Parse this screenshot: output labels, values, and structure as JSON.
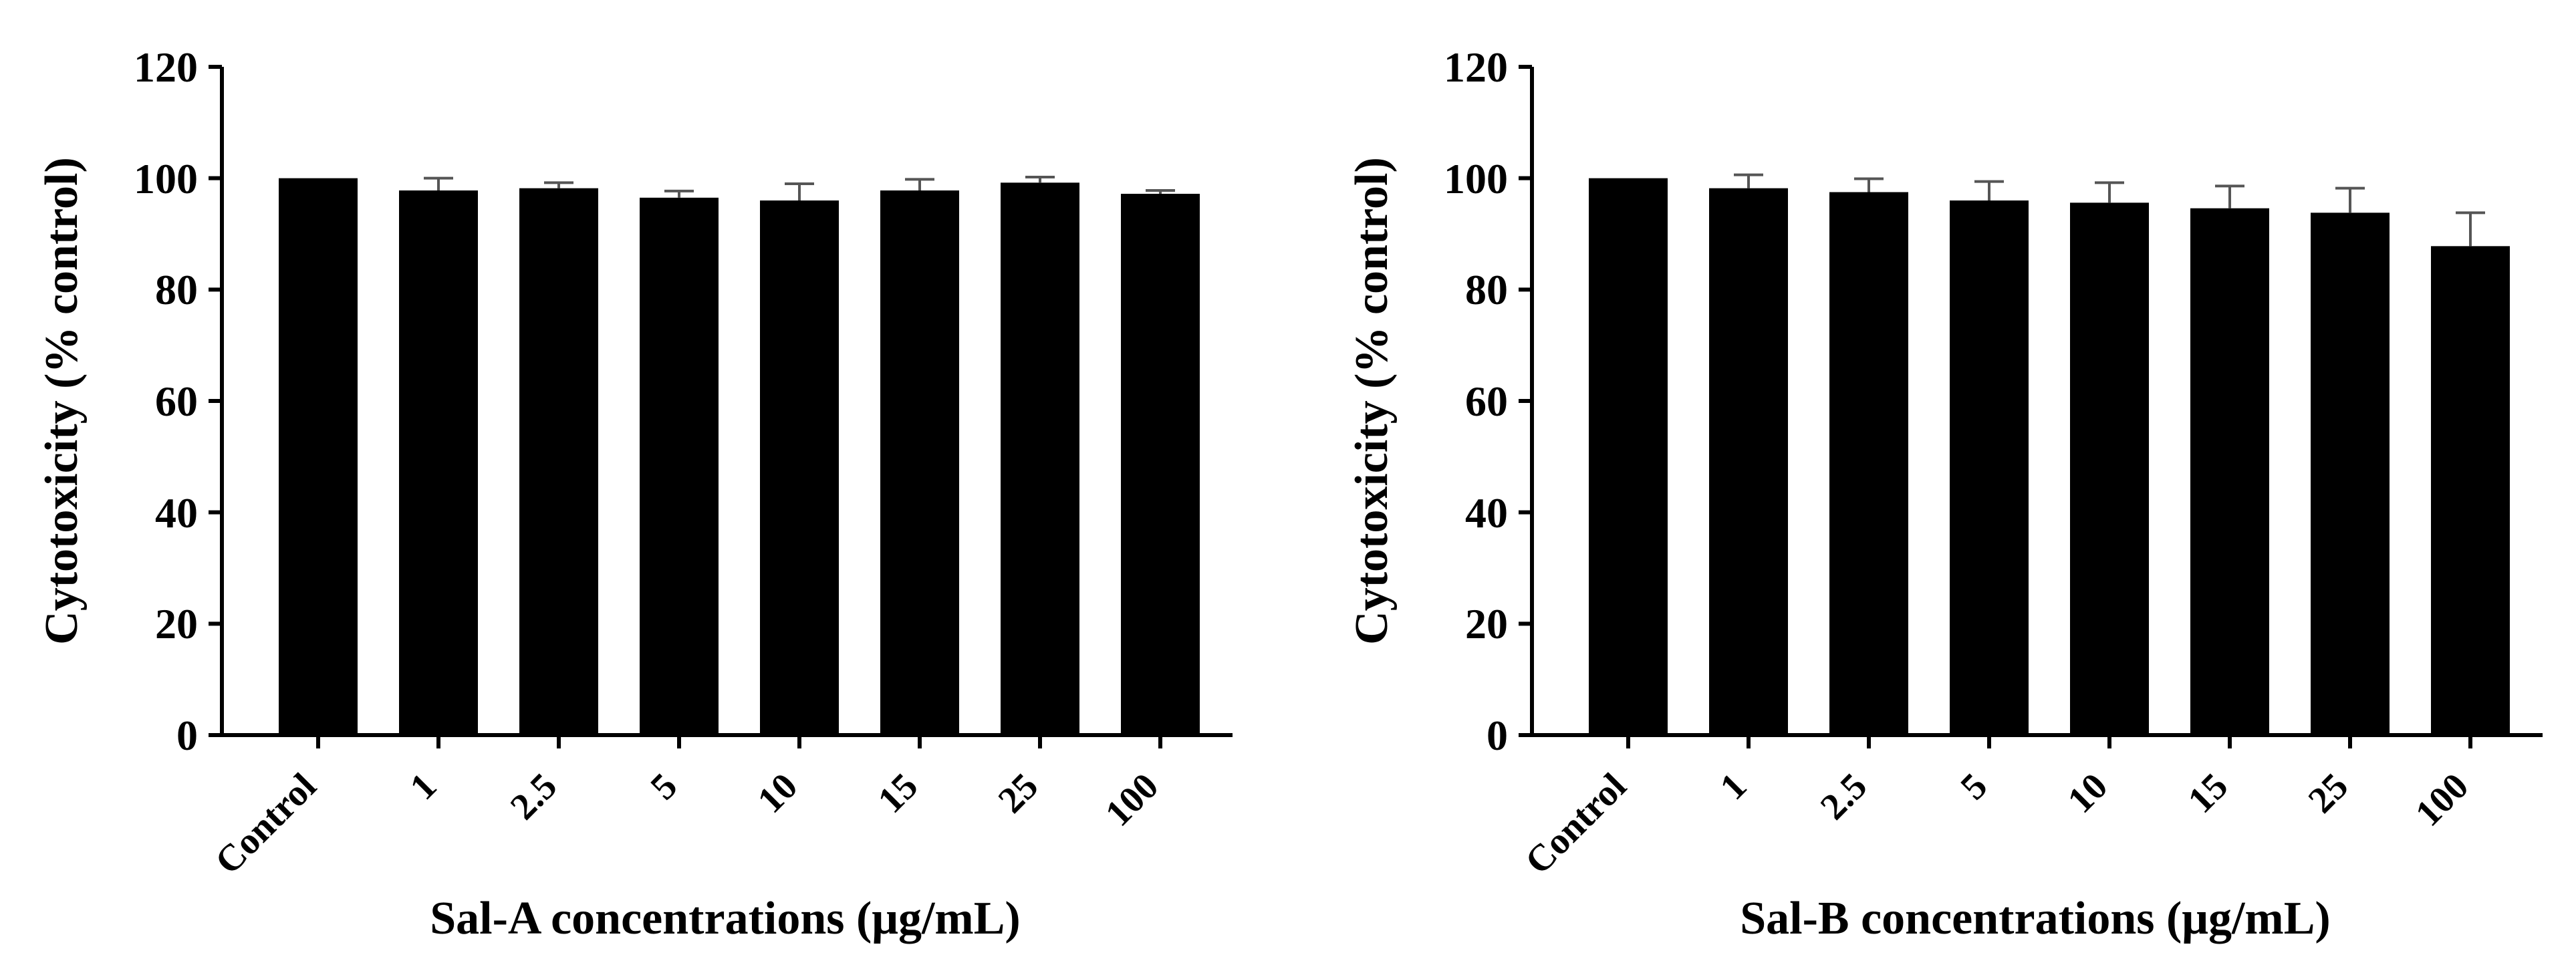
{
  "chart_data": [
    {
      "type": "bar",
      "title": "",
      "xlabel": "Sal-A concentrations (μg/mL)",
      "ylabel": "Cytotoxicity (% control)",
      "categories": [
        "Control",
        "1",
        "2.5",
        "5",
        "10",
        "15",
        "25",
        "100"
      ],
      "values": [
        100,
        97.8,
        98.2,
        96.5,
        96.0,
        97.8,
        99.2,
        97.2
      ],
      "errors": [
        0,
        2.2,
        1.0,
        1.2,
        3.0,
        2.0,
        1.0,
        0.6
      ],
      "ylim": [
        0,
        120
      ],
      "yticks": [
        "0",
        "20",
        "40",
        "60",
        "80",
        "100",
        "120"
      ],
      "bar_color": "#000000",
      "grid": false
    },
    {
      "type": "bar",
      "title": "",
      "xlabel": "Sal-B concentrations (μg/mL)",
      "ylabel": "Cytotoxicity (% control)",
      "categories": [
        "Control",
        "1",
        "2.5",
        "5",
        "10",
        "15",
        "25",
        "100"
      ],
      "values": [
        100,
        98.2,
        97.5,
        96.0,
        95.6,
        94.6,
        93.8,
        87.8
      ],
      "errors": [
        0,
        2.4,
        2.4,
        3.4,
        3.6,
        4.0,
        4.4,
        6.0
      ],
      "ylim": [
        0,
        120
      ],
      "yticks": [
        "0",
        "20",
        "40",
        "60",
        "80",
        "100",
        "120"
      ],
      "bar_color": "#000000",
      "grid": false
    }
  ]
}
